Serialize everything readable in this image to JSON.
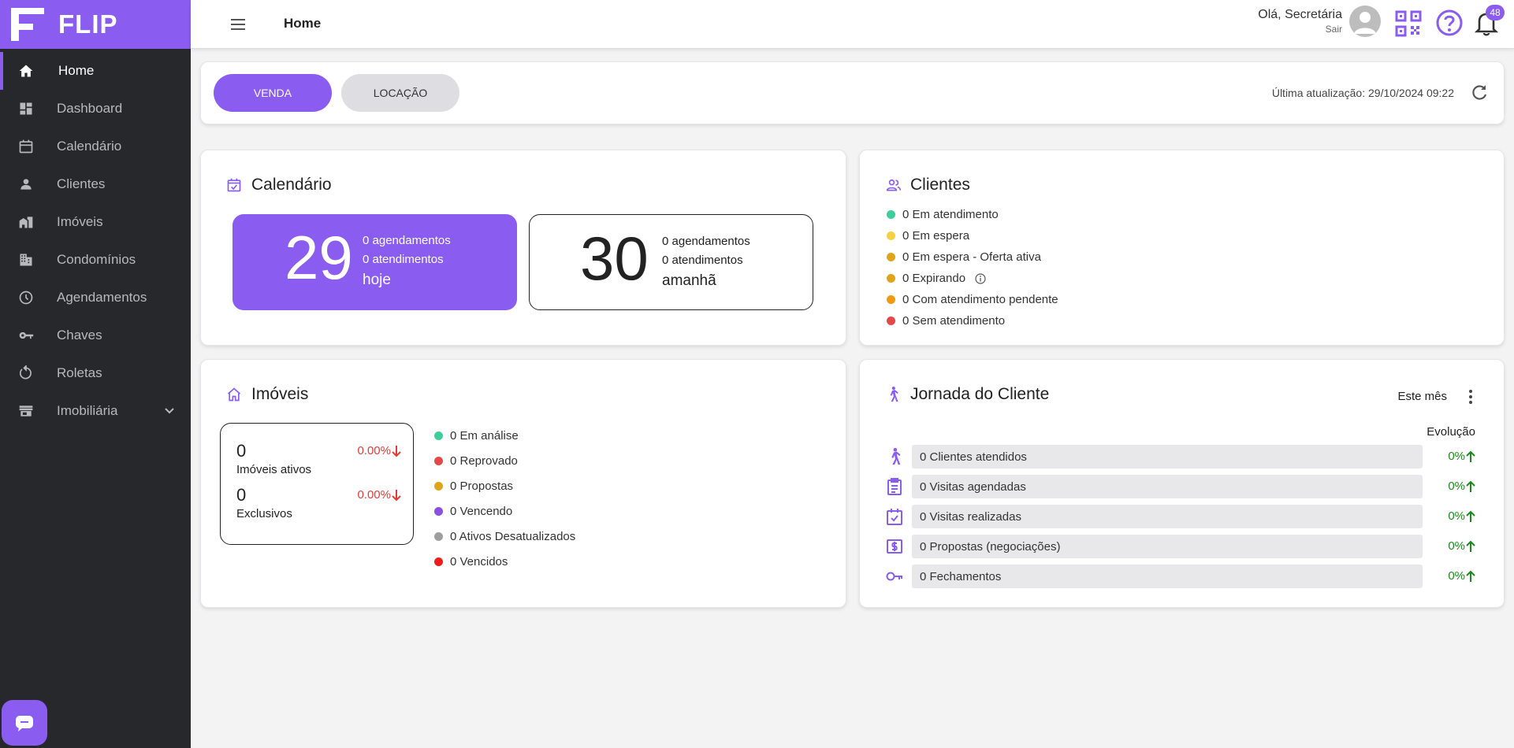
{
  "app": {
    "name": "FLIP"
  },
  "sidebar": {
    "items": [
      {
        "label": "Home",
        "icon": "home-icon"
      },
      {
        "label": "Dashboard",
        "icon": "dashboard-icon"
      },
      {
        "label": "Calendário",
        "icon": "calendar-icon"
      },
      {
        "label": "Clientes",
        "icon": "person-icon"
      },
      {
        "label": "Imóveis",
        "icon": "buildings-icon"
      },
      {
        "label": "Condomínios",
        "icon": "condo-icon"
      },
      {
        "label": "Agendamentos",
        "icon": "clock-icon"
      },
      {
        "label": "Chaves",
        "icon": "key-icon"
      },
      {
        "label": "Roletas",
        "icon": "roulette-icon"
      },
      {
        "label": "Imobiliária",
        "icon": "store-icon"
      }
    ]
  },
  "header": {
    "title": "Home",
    "greeting": "Olá, Secretária",
    "logout": "Sair",
    "notifications": "48"
  },
  "toolbar": {
    "tab_venda": "VENDA",
    "tab_locacao": "LOCAÇÃO",
    "last_update": "Última atualização: 29/10/2024 09:22"
  },
  "calendario": {
    "title": "Calendário",
    "today": {
      "day": "29",
      "agendamentos": "0 agendamentos",
      "atendimentos": "0 atendimentos",
      "label": "hoje"
    },
    "tomorrow": {
      "day": "30",
      "agendamentos": "0 agendamentos",
      "atendimentos": "0 atendimentos",
      "label": "amanhã"
    }
  },
  "clientes": {
    "title": "Clientes",
    "statuses": [
      {
        "label": "0 Em atendimento",
        "color": "#3ccf9a"
      },
      {
        "label": "0 Em espera",
        "color": "#f5d142"
      },
      {
        "label": "0 Em espera - Oferta ativa",
        "color": "#e0a419"
      },
      {
        "label": "0 Expirando",
        "color": "#e0a419"
      },
      {
        "label": "0 Com atendimento pendente",
        "color": "#f09a12"
      },
      {
        "label": "0 Sem atendimento",
        "color": "#e54848"
      }
    ]
  },
  "imoveis": {
    "title": "Imóveis",
    "ativos": {
      "value": "0",
      "label": "Imóveis ativos",
      "pct": "0.00%"
    },
    "exclusivos": {
      "value": "0",
      "label": "Exclusivos",
      "pct": "0.00%"
    },
    "statuses": [
      {
        "label": "0 Em análise",
        "color": "#3ccf9a"
      },
      {
        "label": "0 Reprovado",
        "color": "#e54848"
      },
      {
        "label": "0 Propostas",
        "color": "#e0a419"
      },
      {
        "label": "0 Vencendo",
        "color": "#8a4fe0"
      },
      {
        "label": "0 Ativos Desatualizados",
        "color": "#9e9e9e"
      },
      {
        "label": "0 Vencidos",
        "color": "#ef1c1c"
      }
    ]
  },
  "jornada": {
    "title": "Jornada do Cliente",
    "period": "Este mês",
    "evolution_label": "Evolução",
    "rows": [
      {
        "label": "0 Clientes atendidos",
        "pct": "0%",
        "icon": "walking-person-icon"
      },
      {
        "label": "0 Visitas agendadas",
        "pct": "0%",
        "icon": "clipboard-icon"
      },
      {
        "label": "0 Visitas realizadas",
        "pct": "0%",
        "icon": "calendar-check-icon"
      },
      {
        "label": "0 Propostas (negociações)",
        "pct": "0%",
        "icon": "money-icon"
      },
      {
        "label": "0 Fechamentos",
        "pct": "0%",
        "icon": "key-icon"
      }
    ]
  },
  "colors": {
    "accent": "#8a5cf0",
    "sidebar": "#27282c",
    "positive": "#1b8a1b",
    "negative": "#e53935"
  }
}
